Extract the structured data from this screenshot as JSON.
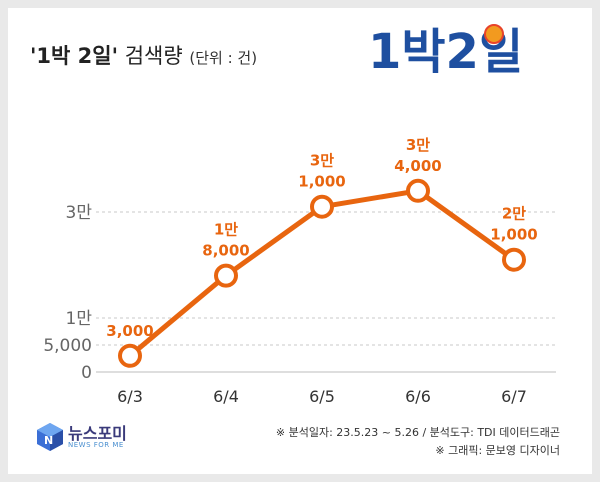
{
  "header": {
    "title_bold": "'1박 2일'",
    "title_rest": " 검색량",
    "unit": "(단위 : 건)"
  },
  "logo": {
    "text": "1박2일",
    "colors": [
      "#1e4fa0",
      "#e8432a",
      "#f29a1f",
      "#2f8f3a"
    ]
  },
  "chart_data": {
    "type": "line",
    "categories": [
      "6/3",
      "6/4",
      "6/5",
      "6/6",
      "6/7"
    ],
    "values": [
      3000,
      18000,
      31000,
      34000,
      21000
    ],
    "data_labels": [
      [
        "3,000"
      ],
      [
        "1만",
        "8,000"
      ],
      [
        "3만",
        "1,000"
      ],
      [
        "3만",
        "4,000"
      ],
      [
        "2만",
        "1,000"
      ]
    ],
    "y_tick_labels": [
      "0",
      "5,000",
      "1만",
      "3만"
    ],
    "y_tick_values": [
      0,
      5000,
      10000,
      30000
    ],
    "ylim": [
      0,
      36000
    ],
    "grid": true,
    "legend": "none",
    "line_color": "#e8650f",
    "label_color": "#e8650f"
  },
  "footer": {
    "brand_ko": "뉴스포미",
    "brand_en": "NEWS FOR ME",
    "credit_period": "※ 분석일자: 23.5.23 ~ 5.26  / 분석도구: TDI 데이터드래곤",
    "credit_design": "※ 그래픽: 문보영 디자이너"
  }
}
